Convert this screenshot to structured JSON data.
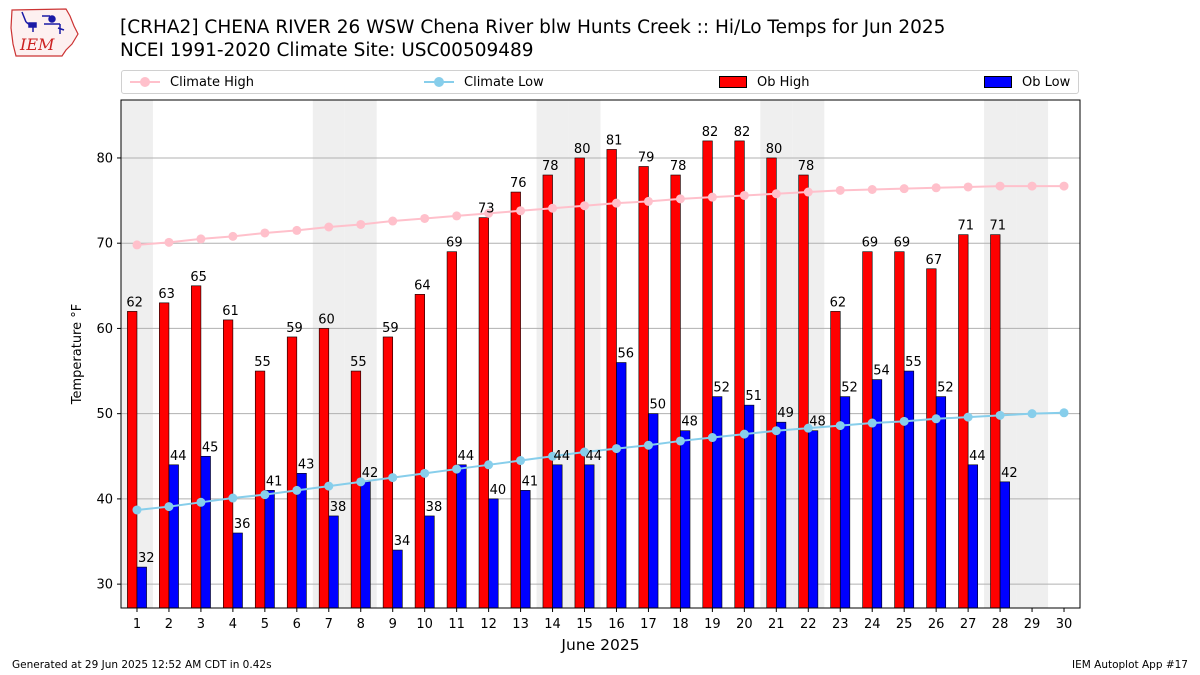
{
  "header": {
    "title_line1": "[CRHA2] CHENA RIVER 26 WSW Chena River blw Hunts Creek :: Hi/Lo Temps for Jun 2025",
    "title_line2": "NCEI 1991-2020 Climate Site: USC00509489",
    "logo_text": "IEM"
  },
  "footer": {
    "left": "Generated at 29 Jun 2025 12:52 AM CDT in 0.42s",
    "right": "IEM Autoplot App #17"
  },
  "legend": {
    "climate_high": "Climate High",
    "climate_low": "Climate Low",
    "ob_high": "Ob High",
    "ob_low": "Ob Low"
  },
  "colors": {
    "climate_high": "#ffc0cb",
    "climate_low": "#87ceeb",
    "ob_high": "#ff0000",
    "ob_low": "#0000ff",
    "weekend_shade": "#efefef",
    "grid": "#b0b0b0"
  },
  "chart_data": {
    "type": "bar",
    "xlabel": "June 2025",
    "ylabel": "Temperature °F",
    "ylim": [
      27.2,
      86.8
    ],
    "yticks": [
      30,
      40,
      50,
      60,
      70,
      80
    ],
    "grid": "horizontal",
    "legend_position": "top",
    "categories": [
      1,
      2,
      3,
      4,
      5,
      6,
      7,
      8,
      9,
      10,
      11,
      12,
      13,
      14,
      15,
      16,
      17,
      18,
      19,
      20,
      21,
      22,
      23,
      24,
      25,
      26,
      27,
      28,
      29,
      30
    ],
    "weekend_days": [
      1,
      7,
      8,
      14,
      15,
      21,
      22,
      28,
      29
    ],
    "series": [
      {
        "name": "Ob High",
        "kind": "bar",
        "values": [
          62,
          63,
          65,
          61,
          55,
          59,
          60,
          55,
          59,
          64,
          69,
          73,
          76,
          78,
          80,
          81,
          79,
          78,
          82,
          82,
          80,
          78,
          62,
          69,
          69,
          67,
          71,
          71,
          null,
          null
        ]
      },
      {
        "name": "Ob Low",
        "kind": "bar",
        "values": [
          32,
          44,
          45,
          36,
          41,
          43,
          38,
          42,
          34,
          38,
          44,
          40,
          41,
          44,
          44,
          56,
          50,
          48,
          52,
          51,
          49,
          48,
          52,
          54,
          55,
          52,
          44,
          42,
          null,
          null
        ]
      },
      {
        "name": "Climate High",
        "kind": "line",
        "values": [
          69.8,
          70.1,
          70.5,
          70.8,
          71.2,
          71.5,
          71.9,
          72.2,
          72.6,
          72.9,
          73.2,
          73.5,
          73.8,
          74.1,
          74.4,
          74.7,
          74.9,
          75.2,
          75.4,
          75.6,
          75.8,
          76.0,
          76.2,
          76.3,
          76.4,
          76.5,
          76.6,
          76.7,
          76.7,
          76.7
        ]
      },
      {
        "name": "Climate Low",
        "kind": "line",
        "values": [
          38.7,
          39.1,
          39.6,
          40.1,
          40.5,
          41.0,
          41.5,
          42.0,
          42.5,
          43.0,
          43.5,
          44.0,
          44.5,
          45.0,
          45.5,
          45.9,
          46.3,
          46.8,
          47.2,
          47.6,
          48.0,
          48.3,
          48.6,
          48.9,
          49.1,
          49.4,
          49.6,
          49.8,
          50.0,
          50.1
        ]
      }
    ]
  }
}
